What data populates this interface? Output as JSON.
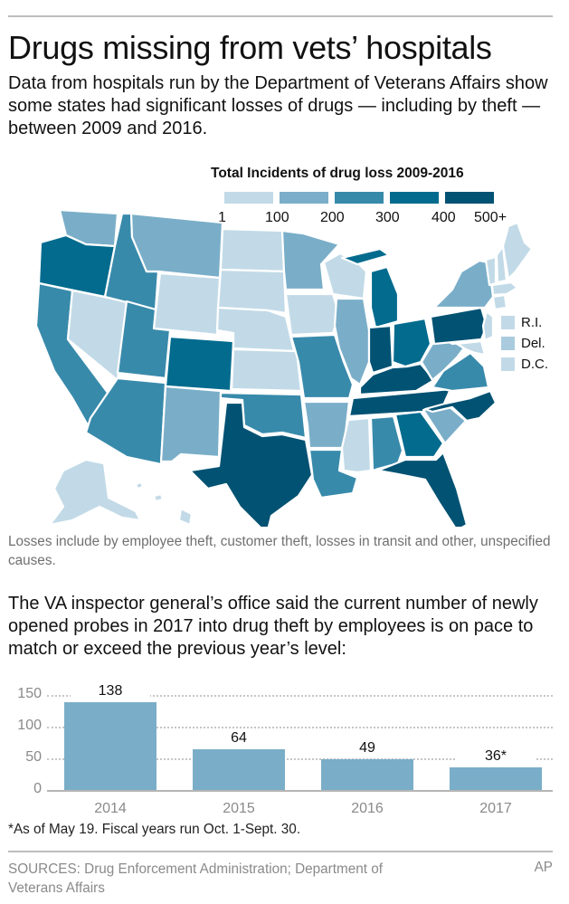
{
  "header": {
    "title": "Drugs missing from vets’ hospitals",
    "subtitle": "Data from hospitals run by the Department of Veterans Affairs show some states had significant losses of drugs — including by theft — between 2009 and 2016."
  },
  "map_legend": {
    "title": "Total Incidents of drug loss 2009-2016",
    "bins": [
      {
        "color": "#c2dae7"
      },
      {
        "color": "#7aaec8"
      },
      {
        "color": "#388aab"
      },
      {
        "color": "#026b8e"
      },
      {
        "color": "#025273"
      }
    ],
    "ticks": [
      "1",
      "100",
      "200",
      "300",
      "400",
      "500+"
    ],
    "small_states": [
      {
        "label": "R.I.",
        "color": "#c2dae7"
      },
      {
        "label": "Del.",
        "color": "#a9cbdd"
      },
      {
        "label": "D.C.",
        "color": "#c2dae7"
      }
    ]
  },
  "map_note": "Losses include by employee theft, customer theft, losses in transit and other, unspecified causes.",
  "bar_section": {
    "intro": "The VA inspector general’s office said the current number of newly opened probes in 2017 into drug theft by employees is on pace to match or exceed the previous year’s level:",
    "footnote": "*As of May 19. Fiscal years run Oct. 1-Sept. 30."
  },
  "chart_data": [
    {
      "type": "choropleth",
      "title": "Total Incidents of drug loss 2009-2016",
      "bins": [
        "1-100",
        "100-200",
        "200-300",
        "300-400",
        "400-500+"
      ],
      "states_by_bin": {
        "1-100": [
          "Nev.",
          "Wyo.",
          "N.D.",
          "S.D.",
          "Neb.",
          "Kan.",
          "Iowa",
          "Wis.",
          "Miss.",
          "Alaska",
          "Hawaii",
          "Maine",
          "N.H.",
          "Vt.",
          "Mass.",
          "Conn.",
          "N.J.",
          "Md.",
          "R.I.",
          "D.C."
        ],
        "100-200": [
          "Wash.",
          "Mont.",
          "Minn.",
          "Ill.",
          "N.M.",
          "Ark.",
          "W.Va.",
          "S.C.",
          "N.Y.",
          "Del."
        ],
        "200-300": [
          "Idaho",
          "Calif.",
          "Utah",
          "Ariz.",
          "Okla.",
          "Mo.",
          "La.",
          "Ala.",
          "Va."
        ],
        "300-400": [
          "Ore.",
          "Colo.",
          "Mich.",
          "Ohio",
          "Ga."
        ],
        "400-500+": [
          "Texas",
          "Ind.",
          "Ky.",
          "Tenn.",
          "N.C.",
          "Pa.",
          "Fla."
        ]
      }
    },
    {
      "type": "bar",
      "title": "Newly opened VA inspector general probes into drug theft by employees",
      "categories": [
        "2014",
        "2015",
        "2016",
        "2017"
      ],
      "values": [
        138,
        64,
        49,
        36
      ],
      "value_labels": [
        "138",
        "64",
        "49",
        "36*"
      ],
      "xlabel": "",
      "ylabel": "",
      "ylim": [
        0,
        150
      ],
      "yticks": [
        0,
        50,
        100,
        150
      ],
      "grid": true,
      "bar_color": "#7aaec8"
    }
  ],
  "footer": {
    "sources": "SOURCES: Drug Enforcement Administration; Department of Veterans Affairs",
    "credit": "AP"
  }
}
